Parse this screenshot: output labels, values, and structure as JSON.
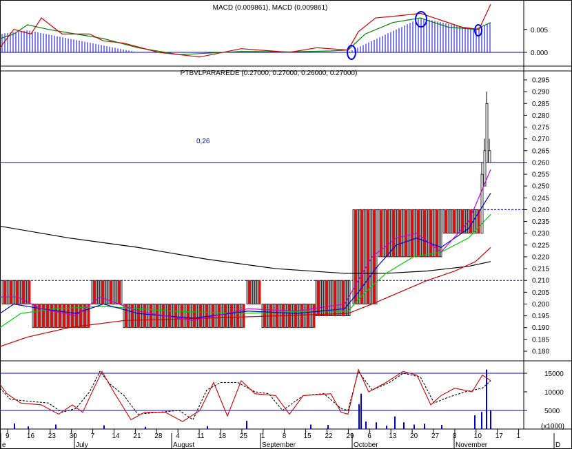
{
  "macd_panel": {
    "title": "MACD (0.009861), MACD (0.009861)",
    "y_ticks": [
      "0.005",
      "0.000"
    ],
    "ylim": [
      -0.0015,
      0.0105
    ],
    "colors": {
      "macd": "#cc0000",
      "signal": "#008000",
      "histogram": "#0000cc",
      "circle": "#0000ff"
    }
  },
  "price_panel": {
    "title": "PTBVLPARAREDE (0.27000, 0.27000, 0.26000, 0.27000)",
    "level_label": "0,26",
    "y_ticks": [
      "0.295",
      "0.290",
      "0.285",
      "0.280",
      "0.275",
      "0.270",
      "0.265",
      "0.260",
      "0.255",
      "0.250",
      "0.245",
      "0.240",
      "0.235",
      "0.230",
      "0.225",
      "0.220",
      "0.215",
      "0.210",
      "0.205",
      "0.200",
      "0.195",
      "0.190",
      "0.185",
      "0.180"
    ],
    "ylim": [
      0.175,
      0.297
    ],
    "colors": {
      "bull": "#000000",
      "bear": "#ff0000",
      "level": "#0000cc",
      "ma_long": "#000000",
      "ma_mid": "#cc0000",
      "ma_short1": "#00cc00",
      "ma_short2": "#0000cc",
      "ma_short3": "#cc00cc"
    }
  },
  "volume_panel": {
    "unit_label": "(x1000)",
    "y_ticks": [
      "15000",
      "10000",
      "5000"
    ],
    "ylim": [
      0,
      20000
    ],
    "colors": {
      "oscillator": "#cc0000",
      "signal": "#000000",
      "volume": "#0000cc",
      "band": "#0000cc"
    }
  },
  "x_axis": {
    "day_labels": [
      "9",
      "16",
      "23",
      "30",
      "7",
      "14",
      "21",
      "28",
      "4",
      "11",
      "18",
      "25",
      "1",
      "8",
      "15",
      "22",
      "29",
      "6",
      "13",
      "20",
      "27",
      "3",
      "10",
      "17",
      "1"
    ],
    "month_labels": [
      "e",
      "July",
      "August",
      "September",
      "October",
      "November",
      "D"
    ]
  },
  "chart_data": {
    "type": "candlestick",
    "title": "PTBVLPARAREDE (0.27000, 0.27000, 0.26000, 0.27000)",
    "last_bar": {
      "open": 0.27,
      "high": 0.27,
      "low": 0.26,
      "close": 0.27
    },
    "resistance_levels": [
      0.26,
      0.24,
      0.21
    ],
    "segments": [
      {
        "period": "early Jun",
        "low": 0.2,
        "high": 0.21
      },
      {
        "period": "mid Jun - early Jul",
        "low": 0.19,
        "high": 0.2
      },
      {
        "period": "early-mid Jul",
        "low": 0.2,
        "high": 0.21
      },
      {
        "period": "mid Jul - late Sep",
        "low": 0.19,
        "high": 0.2
      },
      {
        "period": "early Oct",
        "low": 0.2,
        "high": 0.24
      },
      {
        "period": "mid Oct - early Nov",
        "low": 0.22,
        "high": 0.24
      },
      {
        "period": "mid Nov",
        "low": 0.23,
        "high": 0.29
      }
    ],
    "ma_long_start": 0.233,
    "ma_long_end": 0.218,
    "macd_last": 0.009861
  }
}
